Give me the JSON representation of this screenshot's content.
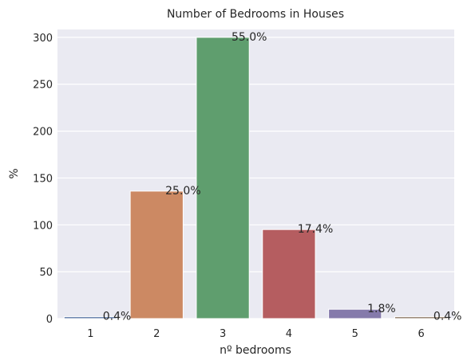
{
  "chart_data": {
    "type": "bar",
    "title": "Number of Bedrooms in Houses",
    "xlabel": "nº bedrooms",
    "ylabel": "%",
    "categories": [
      "1",
      "2",
      "3",
      "4",
      "5",
      "6"
    ],
    "values": [
      2,
      136,
      300,
      95,
      10,
      2
    ],
    "annotations": [
      "0.4%",
      "25.0%",
      "55.0%",
      "17.4%",
      "1.8%",
      "0.4%"
    ],
    "colors": [
      "#5975a4",
      "#cc8963",
      "#5f9e6e",
      "#b55d60",
      "#857aab",
      "#8d7866"
    ],
    "ylim": [
      0,
      308.4
    ],
    "yticks": [
      0,
      50,
      100,
      150,
      200,
      250,
      300
    ],
    "grid": true
  }
}
